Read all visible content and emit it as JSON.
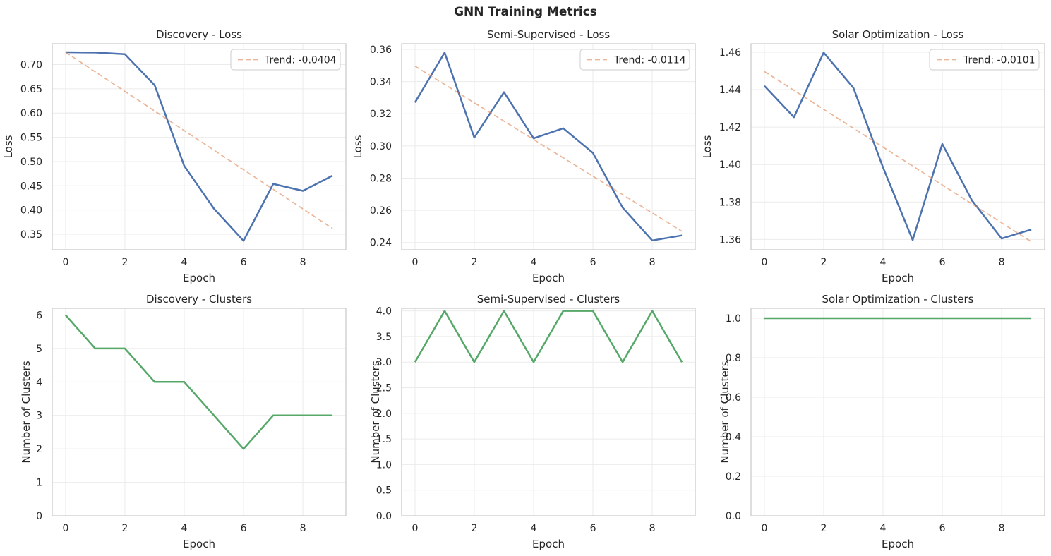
{
  "figure": {
    "title": "GNN Training Metrics"
  },
  "colors": {
    "loss_line": "#4c72b0",
    "trend_line": "#dd8452",
    "trend_alpha": 0.6,
    "cluster_line": "#55a868",
    "grid": "#ebebeb",
    "spine": "#cccccc"
  },
  "chart_data": [
    {
      "type": "line",
      "title": "Discovery - Loss",
      "xlabel": "Epoch",
      "ylabel": "Loss",
      "x": [
        0,
        1,
        2,
        3,
        4,
        5,
        6,
        7,
        8,
        9
      ],
      "series": [
        {
          "values": [
            0.7255,
            0.725,
            0.7215,
            0.6575,
            0.491,
            0.403,
            0.3365,
            0.454,
            0.4395,
            0.471
          ]
        },
        {
          "name": "Trend: -0.0404",
          "style": "dashed",
          "values": [
            0.7255,
            0.6851,
            0.6447,
            0.6043,
            0.5639,
            0.5235,
            0.4831,
            0.4427,
            0.4023,
            0.3619
          ]
        }
      ],
      "xlim": [
        -0.45,
        9.45
      ],
      "ylim": [
        0.318,
        0.743
      ],
      "xticks": [
        0,
        2,
        4,
        6,
        8
      ],
      "yticks": [
        0.35,
        0.4,
        0.45,
        0.5,
        0.55,
        0.6,
        0.65,
        0.7
      ],
      "ytick_labels": [
        "0.35",
        "0.40",
        "0.45",
        "0.50",
        "0.55",
        "0.60",
        "0.65",
        "0.70"
      ],
      "grid": true,
      "legend": "upper right"
    },
    {
      "type": "line",
      "title": "Semi-Supervised - Loss",
      "xlabel": "Epoch",
      "ylabel": "Loss",
      "x": [
        0,
        1,
        2,
        3,
        4,
        5,
        6,
        7,
        8,
        9
      ],
      "series": [
        {
          "values": [
            0.327,
            0.358,
            0.3052,
            0.3334,
            0.3047,
            0.311,
            0.2957,
            0.2617,
            0.2413,
            0.2444
          ]
        },
        {
          "name": "Trend: -0.0114",
          "style": "dashed",
          "values": [
            0.3496,
            0.3382,
            0.3268,
            0.3154,
            0.304,
            0.2926,
            0.2812,
            0.2698,
            0.2584,
            0.247
          ]
        }
      ],
      "xlim": [
        -0.45,
        9.45
      ],
      "ylim": [
        0.2355,
        0.3635
      ],
      "xticks": [
        0,
        2,
        4,
        6,
        8
      ],
      "yticks": [
        0.24,
        0.26,
        0.28,
        0.3,
        0.32,
        0.34,
        0.36
      ],
      "ytick_labels": [
        "0.24",
        "0.26",
        "0.28",
        "0.30",
        "0.32",
        "0.34",
        "0.36"
      ],
      "grid": true,
      "legend": "upper right"
    },
    {
      "type": "line",
      "title": "Solar Optimization - Loss",
      "xlabel": "Epoch",
      "ylabel": "Loss",
      "x": [
        0,
        1,
        2,
        3,
        4,
        5,
        6,
        7,
        8,
        9
      ],
      "series": [
        {
          "values": [
            1.442,
            1.4253,
            1.4598,
            1.441,
            1.3985,
            1.3597,
            1.411,
            1.3808,
            1.3605,
            1.3653
          ]
        },
        {
          "name": "Trend: -0.0101",
          "style": "dashed",
          "values": [
            1.4497,
            1.4396,
            1.4295,
            1.4194,
            1.4093,
            1.3992,
            1.3891,
            1.379,
            1.3689,
            1.3588
          ]
        }
      ],
      "xlim": [
        -0.45,
        9.45
      ],
      "ylim": [
        1.3545,
        1.4645
      ],
      "xticks": [
        0,
        2,
        4,
        6,
        8
      ],
      "yticks": [
        1.36,
        1.38,
        1.4,
        1.42,
        1.44,
        1.46
      ],
      "ytick_labels": [
        "1.36",
        "1.38",
        "1.40",
        "1.42",
        "1.44",
        "1.46"
      ],
      "grid": true,
      "legend": "upper right"
    },
    {
      "type": "line",
      "title": "Discovery - Clusters",
      "xlabel": "Epoch",
      "ylabel": "Number of Clusters",
      "x": [
        0,
        1,
        2,
        3,
        4,
        5,
        6,
        7,
        8,
        9
      ],
      "series": [
        {
          "values": [
            6,
            5,
            5,
            4,
            4,
            3,
            2,
            3,
            3,
            3
          ]
        }
      ],
      "xlim": [
        -0.45,
        9.45
      ],
      "ylim": [
        0,
        6.2
      ],
      "xticks": [
        0,
        2,
        4,
        6,
        8
      ],
      "yticks": [
        0,
        1,
        2,
        3,
        4,
        5,
        6
      ],
      "ytick_labels": [
        "0",
        "1",
        "2",
        "3",
        "4",
        "5",
        "6"
      ],
      "grid": true
    },
    {
      "type": "line",
      "title": "Semi-Supervised - Clusters",
      "xlabel": "Epoch",
      "ylabel": "Number of Clusters",
      "x": [
        0,
        1,
        2,
        3,
        4,
        5,
        6,
        7,
        8,
        9
      ],
      "series": [
        {
          "values": [
            3,
            4,
            3,
            4,
            3,
            4,
            4,
            3,
            4,
            3
          ]
        }
      ],
      "xlim": [
        -0.45,
        9.45
      ],
      "ylim": [
        0,
        4.05
      ],
      "xticks": [
        0,
        2,
        4,
        6,
        8
      ],
      "yticks": [
        0,
        0.5,
        1,
        1.5,
        2,
        2.5,
        3,
        3.5,
        4
      ],
      "ytick_labels": [
        "0.0",
        "0.5",
        "1.0",
        "1.5",
        "2.0",
        "2.5",
        "3.0",
        "3.5",
        "4.0"
      ],
      "grid": true
    },
    {
      "type": "line",
      "title": "Solar Optimization - Clusters",
      "xlabel": "Epoch",
      "ylabel": "Number of Clusters",
      "x": [
        0,
        1,
        2,
        3,
        4,
        5,
        6,
        7,
        8,
        9
      ],
      "series": [
        {
          "values": [
            1,
            1,
            1,
            1,
            1,
            1,
            1,
            1,
            1,
            1
          ]
        }
      ],
      "xlim": [
        -0.45,
        9.45
      ],
      "ylim": [
        0,
        1.05
      ],
      "xticks": [
        0,
        2,
        4,
        6,
        8
      ],
      "yticks": [
        0,
        0.2,
        0.4,
        0.6,
        0.8,
        1.0
      ],
      "ytick_labels": [
        "0.0",
        "0.2",
        "0.4",
        "0.6",
        "0.8",
        "1.0"
      ],
      "grid": true
    }
  ]
}
